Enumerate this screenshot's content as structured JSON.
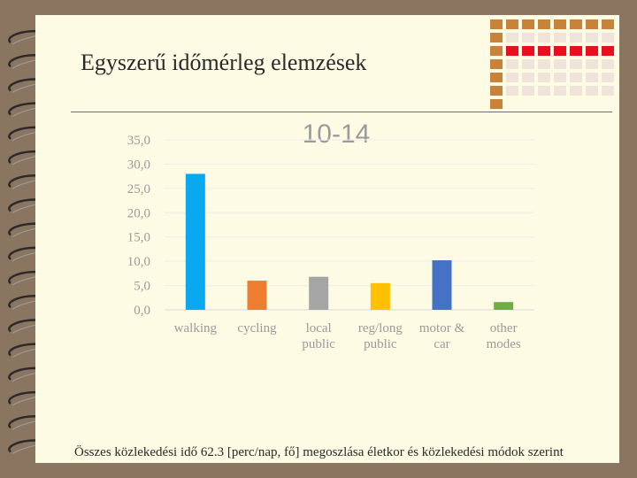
{
  "slide": {
    "title": "Egyszerű időmérleg elemzések",
    "caption": "Összes közlekedési idő 62.3 [perc/nap, fő] megoszlása életkor és közlekedési módok szerint"
  },
  "colors": {
    "background": "#8a7560",
    "slide": "#fdfbe3",
    "deco_brown": "#c9823a",
    "deco_red": "#e8101e",
    "deco_light": "#efe3da"
  },
  "chart_data": {
    "type": "bar",
    "title": "10-14",
    "xlabel": "",
    "ylabel": "",
    "ylim": [
      0,
      35
    ],
    "yticks": [
      "0,0",
      "5,0",
      "10,0",
      "15,0",
      "20,0",
      "25,0",
      "30,0",
      "35,0"
    ],
    "grid": true,
    "categories": [
      [
        "walking"
      ],
      [
        "cycling"
      ],
      [
        "local",
        "public"
      ],
      [
        "reg/long",
        "public"
      ],
      [
        "motor &",
        "car"
      ],
      [
        "other",
        "modes"
      ]
    ],
    "values": [
      28.0,
      6.0,
      6.8,
      5.5,
      10.2,
      1.6
    ],
    "bar_colors": [
      "#0aa8f0",
      "#ec7d31",
      "#a5a5a5",
      "#ffc000",
      "#4472c4",
      "#70ad47"
    ]
  }
}
